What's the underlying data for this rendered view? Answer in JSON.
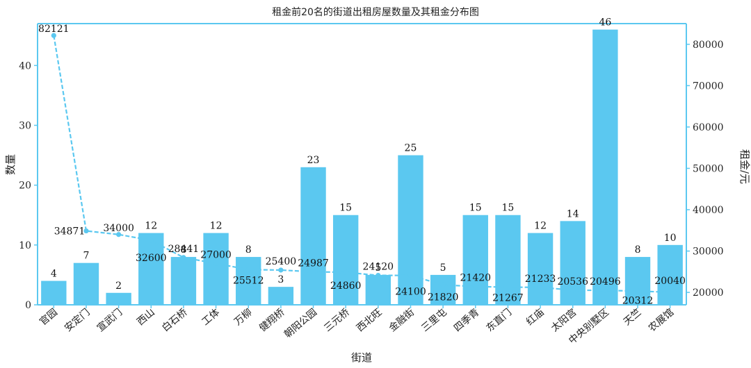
{
  "chart_data": {
    "type": "bar",
    "title": "租金前20名的街道出租房屋数量及其租金分布图",
    "xlabel": "街道",
    "ylabel": "数量",
    "y2label": "租金/元",
    "categories": [
      "官园",
      "安定门",
      "宣武门",
      "西山",
      "白石桥",
      "工体",
      "万柳",
      "健翔桥",
      "朝阳公园",
      "三元桥",
      "西北旺",
      "金融街",
      "三里屯",
      "四季青",
      "东直门",
      "红庙",
      "太阳宫",
      "中央别墅区",
      "天竺",
      "农展馆"
    ],
    "series": [
      {
        "type": "bar",
        "axis": "left",
        "values": [
          4,
          7,
          2,
          12,
          8,
          12,
          8,
          3,
          23,
          15,
          5,
          25,
          5,
          15,
          15,
          12,
          14,
          46,
          8,
          10
        ]
      },
      {
        "type": "line",
        "axis": "right",
        "values": [
          82121,
          34871,
          34000,
          32600,
          28441,
          27000,
          25512,
          25400,
          24987,
          24860,
          24120,
          24100,
          21820,
          21420,
          21267,
          21233,
          20536,
          20496,
          20312,
          20040
        ]
      }
    ],
    "ylim": [
      0,
      47
    ],
    "y2lim": [
      17000,
      85000
    ],
    "yticks": [
      0,
      10,
      20,
      30,
      40
    ],
    "y2ticks": [
      20000,
      30000,
      40000,
      50000,
      60000,
      70000,
      80000
    ],
    "grid": false,
    "colors": {
      "bar": "#5BC8F0",
      "line": "#5BC8F0",
      "axis": "#5BC8F0",
      "text": "#222222"
    }
  }
}
